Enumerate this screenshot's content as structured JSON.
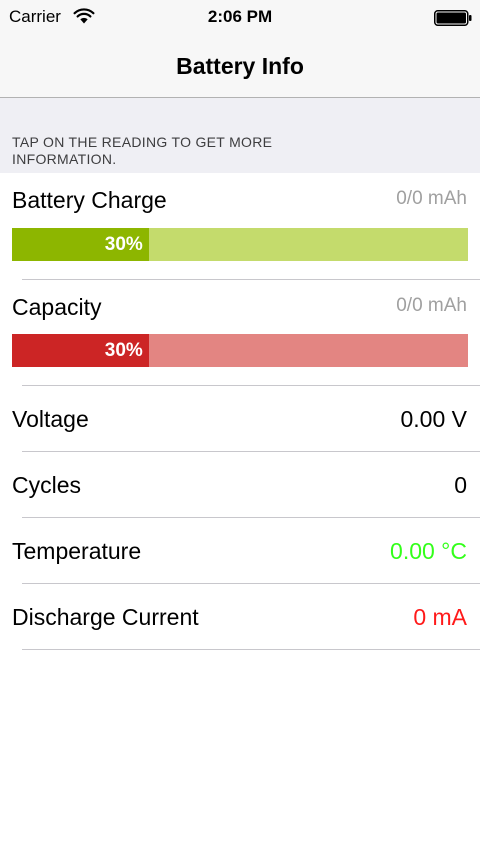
{
  "status_bar": {
    "carrier": "Carrier",
    "time": "2:06 PM"
  },
  "nav": {
    "title": "Battery Info"
  },
  "section": {
    "header": "TAP ON THE READING TO GET MORE INFORMATION."
  },
  "rows": {
    "battery_charge": {
      "label": "Battery Charge",
      "value": "0/0 mAh",
      "percent_label": "30%",
      "percent": 30,
      "fill_color": "#8db600",
      "track_color": "#c4db6c"
    },
    "capacity": {
      "label": "Capacity",
      "value": "0/0 mAh",
      "percent_label": "30%",
      "percent": 30,
      "fill_color": "#cc2525",
      "track_color": "#e38582"
    },
    "voltage": {
      "label": "Voltage",
      "value": "0.00 V",
      "color": "#000000"
    },
    "cycles": {
      "label": "Cycles",
      "value": "0",
      "color": "#000000"
    },
    "temperature": {
      "label": "Temperature",
      "value": "0.00 °C",
      "color": "#33ff1a"
    },
    "discharge_current": {
      "label": "Discharge Current",
      "value": "0 mA",
      "color": "#ff1a1a"
    }
  }
}
